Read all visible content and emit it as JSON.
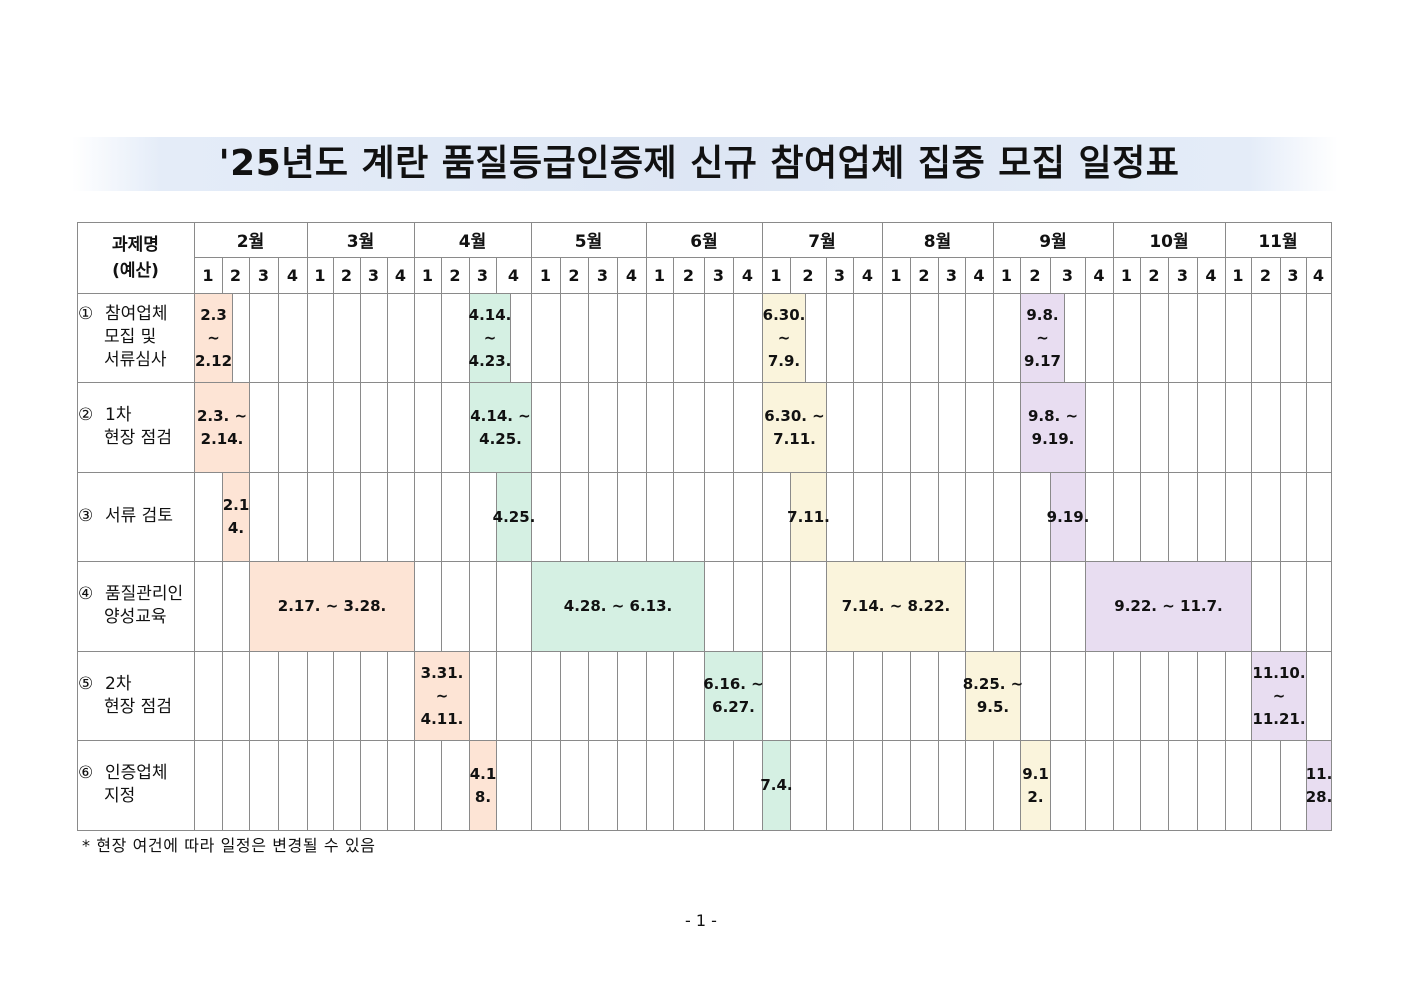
{
  "title": "'25년도 계란 품질등급인증제 신규 참여업체 집중 모집 일정표",
  "table": {
    "header": {
      "line1": "과제명",
      "line2": "(예산)"
    },
    "months": [
      "2월",
      "3월",
      "4월",
      "5월",
      "6월",
      "7월",
      "8월",
      "9월",
      "10월",
      "11월"
    ],
    "weeks": [
      "1",
      "2",
      "3",
      "4"
    ],
    "tasks": [
      {
        "number": "①",
        "label_lines": [
          "참여업체",
          "모집 및",
          "서류심사"
        ],
        "periods": [
          {
            "lines": [
              "2.3",
              "~",
              "2.12"
            ],
            "color": "#fde4d5"
          },
          {
            "lines": [
              "4.14.",
              "~",
              "4.23."
            ],
            "color": "#d5f0e3"
          },
          {
            "lines": [
              "6.30.",
              "~",
              "7.9."
            ],
            "color": "#faf4dc"
          },
          {
            "lines": [
              "9.8.",
              "~",
              "9.17"
            ],
            "color": "#e8ddf1"
          }
        ]
      },
      {
        "number": "②",
        "label_lines": [
          "1차",
          "현장 점검"
        ],
        "periods": [
          {
            "lines": [
              "2.3. ~",
              "2.14."
            ],
            "color": "#fde4d5"
          },
          {
            "lines": [
              "4.14. ~",
              "4.25."
            ],
            "color": "#d5f0e3"
          },
          {
            "lines": [
              "6.30. ~",
              "7.11."
            ],
            "color": "#faf4dc"
          },
          {
            "lines": [
              "9.8. ~",
              "9.19."
            ],
            "color": "#e8ddf1"
          }
        ]
      },
      {
        "number": "③",
        "label_lines": [
          "서류 검토"
        ],
        "periods": [
          {
            "lines": [
              "2.1",
              "4."
            ],
            "color": "#fde4d5"
          },
          {
            "lines": [
              "4.25."
            ],
            "color": "#d5f0e3"
          },
          {
            "lines": [
              "7.11."
            ],
            "color": "#faf4dc"
          },
          {
            "lines": [
              "9.19."
            ],
            "color": "#e8ddf1"
          }
        ]
      },
      {
        "number": "④",
        "label_lines": [
          "품질관리인",
          "양성교육"
        ],
        "periods": [
          {
            "lines": [
              "2.17. ~ 3.28."
            ],
            "color": "#fde4d5"
          },
          {
            "lines": [
              "4.28. ~ 6.13."
            ],
            "color": "#d5f0e3"
          },
          {
            "lines": [
              "7.14. ~ 8.22."
            ],
            "color": "#faf4dc"
          },
          {
            "lines": [
              "9.22. ~ 11.7."
            ],
            "color": "#e8ddf1"
          }
        ]
      },
      {
        "number": "⑤",
        "label_lines": [
          "2차",
          "현장 점검"
        ],
        "periods": [
          {
            "lines": [
              "3.31.",
              "~",
              "4.11."
            ],
            "color": "#fde4d5"
          },
          {
            "lines": [
              "6.16. ~",
              "6.27."
            ],
            "color": "#d5f0e3"
          },
          {
            "lines": [
              "8.25. ~",
              "9.5."
            ],
            "color": "#faf4dc"
          },
          {
            "lines": [
              "11.10.",
              "~",
              "11.21."
            ],
            "color": "#e8ddf1"
          }
        ]
      },
      {
        "number": "⑥",
        "label_lines": [
          "인증업체",
          "지정"
        ],
        "periods": [
          {
            "lines": [
              "4.1",
              "8."
            ],
            "color": "#fde4d5"
          },
          {
            "lines": [
              "7.4."
            ],
            "color": "#d5f0e3"
          },
          {
            "lines": [
              "9.1",
              "2."
            ],
            "color": "#faf4dc"
          },
          {
            "lines": [
              "11.",
              "28."
            ],
            "color": "#e8ddf1"
          }
        ]
      }
    ]
  },
  "footnote": "* 현장 여건에 따라 일정은 변경될 수 있음",
  "page_number": "- 1 -"
}
